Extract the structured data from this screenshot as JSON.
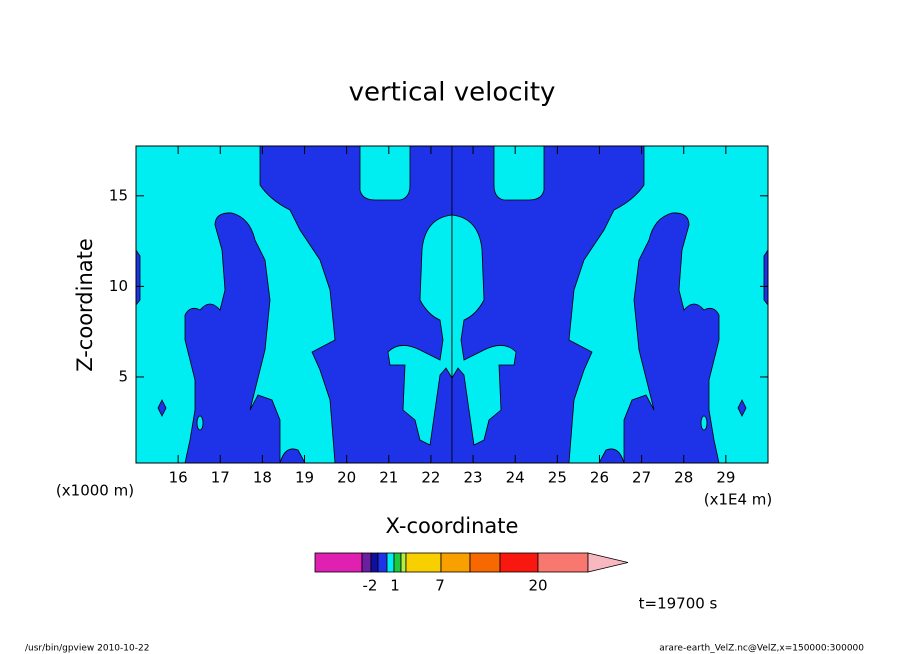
{
  "chart_data": {
    "type": "contour",
    "title": "vertical velocity",
    "x_label": "X-coordinate",
    "y_label": "Z-coordinate",
    "x_unit_label": "(x1E4 m)",
    "y_unit_label": "(x1000 m)",
    "xlim": [
      15,
      30
    ],
    "xticks": [
      16,
      17,
      18,
      19,
      20,
      21,
      22,
      23,
      24,
      25,
      26,
      27,
      28,
      29
    ],
    "ylim": [
      0.25,
      17.75
    ],
    "yticks": [
      5,
      10,
      15
    ],
    "colorbar_ticks": [
      -2,
      1,
      7,
      20
    ],
    "time_label": "t=19700 s",
    "footer_left": "/usr/bin/gpview   2010-10-22",
    "footer_right": "arare-earth_VelZ.nc@VelZ,x=150000:300000"
  }
}
